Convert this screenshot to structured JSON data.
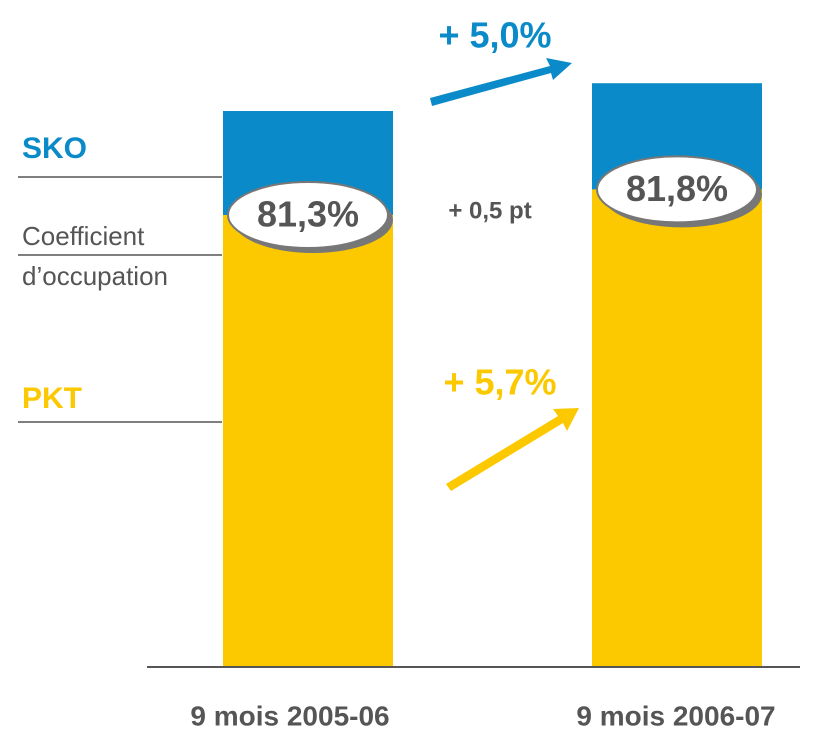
{
  "chart_data": {
    "type": "bar",
    "categories": [
      "9 mois 2005-06",
      "9 mois 2006-07"
    ],
    "series": [
      {
        "name": "SKO",
        "color": "#0a8ac8",
        "values": [
          100,
          105
        ]
      },
      {
        "name": "PKT",
        "color": "#fcc800",
        "values": [
          81.3,
          85.9
        ]
      }
    ],
    "load_factor": {
      "name": [
        "Coefficient",
        "d’occupation"
      ],
      "values": [
        81.3,
        81.8
      ],
      "value_labels": [
        "81,3%",
        "81,8%"
      ]
    },
    "annotations": {
      "sko_growth": "+ 5,0%",
      "pkt_growth": "+ 5,7%",
      "load_factor_change": "+ 0,5 pt"
    }
  }
}
